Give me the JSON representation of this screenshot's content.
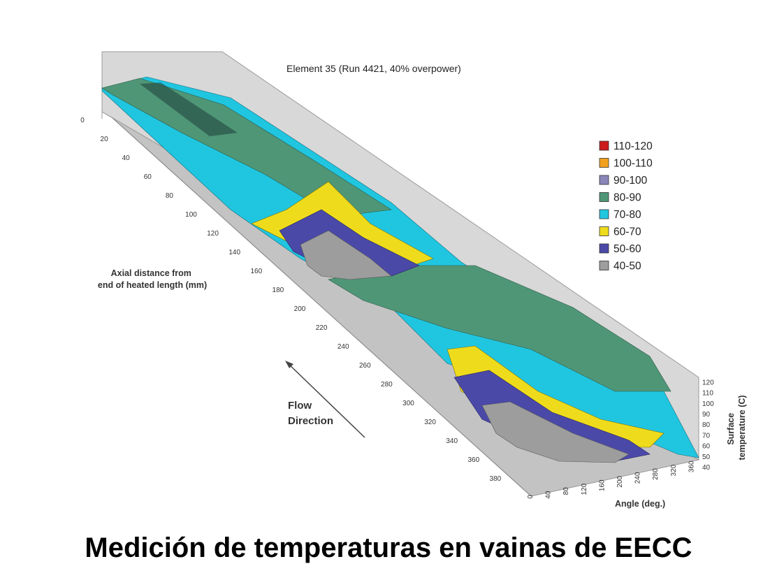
{
  "chart_data": {
    "type": "surface3d",
    "title": "Element 35 (Run 4421, 40% overpower)",
    "x_axis": {
      "label_lines": [
        "Axial distance from",
        "end of heated length (mm)"
      ],
      "ticks": [
        "0",
        "20",
        "40",
        "60",
        "80",
        "100",
        "120",
        "140",
        "160",
        "180",
        "200",
        "220",
        "240",
        "260",
        "280",
        "300",
        "320",
        "340",
        "360",
        "380"
      ]
    },
    "y_axis": {
      "label": "Angle (deg.)",
      "ticks": [
        "0",
        "40",
        "80",
        "120",
        "160",
        "200",
        "240",
        "280",
        "320",
        "360"
      ]
    },
    "z_axis": {
      "label_lines": [
        "Surface",
        "temperature (C)"
      ],
      "ticks": [
        "40",
        "50",
        "60",
        "70",
        "80",
        "90",
        "100",
        "110",
        "120"
      ],
      "range": [
        40,
        120
      ]
    },
    "legend": [
      {
        "label": "110-120",
        "color": "#cc1b1b"
      },
      {
        "label": "100-110",
        "color": "#f2a01f"
      },
      {
        "label": "90-100",
        "color": "#8b86b8"
      },
      {
        "label": "80-90",
        "color": "#4f9677"
      },
      {
        "label": "70-80",
        "color": "#20c6e0"
      },
      {
        "label": "60-70",
        "color": "#eedc1c"
      },
      {
        "label": "50-60",
        "color": "#4b49a8"
      },
      {
        "label": "40-50",
        "color": "#9d9d9d"
      }
    ],
    "annotation_lines": [
      "Flow",
      "Direction"
    ]
  },
  "caption": "Medición de temperaturas en vainas de EECC"
}
